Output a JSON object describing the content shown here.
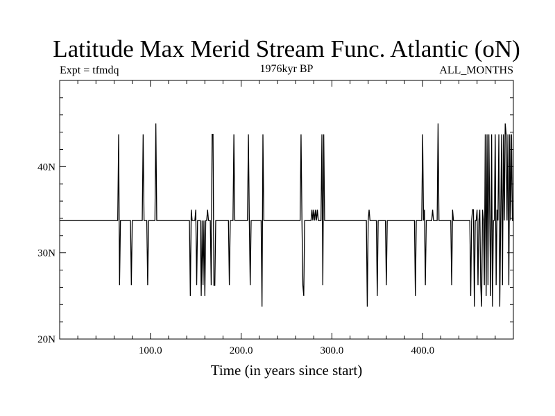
{
  "chart_data": {
    "type": "line",
    "title": "Latitude Max Merid Stream Func. Atlantic (oN)",
    "subtitle_left": "Expt = tfmdq",
    "subtitle_center": "1976kyr BP",
    "subtitle_right": "ALL_MONTHS",
    "xlabel": "Time (in years since start)",
    "ylabel": "",
    "xlim": [
      0,
      500
    ],
    "ylim": [
      20,
      50
    ],
    "x_ticks": [
      100,
      200,
      300,
      400
    ],
    "x_tick_labels": [
      "100.0",
      "200.0",
      "300.0",
      "400.0"
    ],
    "y_ticks": [
      20,
      30,
      40
    ],
    "y_tick_labels": [
      "20N",
      "30N",
      "40N"
    ],
    "grid": false,
    "legend": "none",
    "baseline": 33.75,
    "series": [
      {
        "values_x": [
          0,
          64,
          65,
          66,
          67,
          68,
          78,
          79,
          80,
          91,
          92,
          93,
          96,
          97,
          98,
          105,
          106,
          107,
          143,
          144,
          145,
          146,
          149,
          150,
          151,
          152,
          155,
          156,
          157,
          158,
          159,
          160,
          161,
          162,
          163,
          164,
          166,
          167,
          168,
          169,
          170,
          171,
          172,
          173,
          186,
          187,
          188,
          191,
          192,
          193,
          207,
          208,
          209,
          210,
          211,
          222,
          223,
          224,
          225,
          265,
          266,
          267,
          268,
          269,
          270,
          277,
          278,
          279,
          280,
          281,
          282,
          283,
          284,
          285,
          288,
          289,
          290,
          291,
          292,
          338,
          339,
          340,
          341,
          342,
          343,
          349,
          350,
          351,
          359,
          360,
          361,
          391,
          392,
          393,
          399,
          400,
          401,
          402,
          403,
          404,
          405,
          410,
          411,
          412,
          416,
          417,
          418,
          431,
          432,
          433,
          434,
          452,
          453,
          454,
          455,
          456,
          457,
          458,
          459,
          460,
          461,
          462,
          463,
          464,
          465,
          466,
          467,
          468,
          469,
          470,
          471,
          472,
          473,
          474,
          475,
          476,
          477,
          478,
          479,
          480,
          481,
          482,
          483,
          484,
          485,
          486,
          487,
          488,
          489,
          490,
          491,
          492,
          493,
          494,
          495,
          496,
          497,
          498,
          499,
          500
        ],
        "values_y": [
          33.75,
          33.75,
          43.75,
          26.25,
          33.75,
          33.75,
          33.75,
          26.25,
          33.75,
          33.75,
          43.75,
          33.75,
          33.75,
          26.25,
          33.75,
          33.75,
          45,
          33.75,
          33.75,
          25,
          35,
          33.75,
          33.75,
          35,
          26.25,
          33.75,
          33.75,
          25,
          33.75,
          26.25,
          33.75,
          25,
          33.75,
          33.75,
          35,
          33.75,
          33.75,
          26.25,
          43.75,
          43.75,
          26.25,
          26.25,
          33.75,
          33.75,
          33.75,
          26.25,
          33.75,
          33.75,
          43.75,
          33.75,
          33.75,
          43.75,
          33.75,
          26.25,
          33.75,
          33.75,
          23.75,
          43.75,
          33.75,
          33.75,
          43.75,
          33.75,
          26.25,
          25,
          33.75,
          33.75,
          35,
          33.75,
          35,
          33.75,
          35,
          33.75,
          35,
          33.75,
          33.75,
          43.75,
          26.25,
          43.75,
          33.75,
          33.75,
          23.75,
          33.75,
          35,
          33.75,
          33.75,
          33.75,
          25,
          33.75,
          33.75,
          26.25,
          33.75,
          33.75,
          25,
          33.75,
          33.75,
          43.75,
          33.75,
          35,
          26.25,
          33.75,
          33.75,
          33.75,
          35,
          33.75,
          33.75,
          45,
          33.75,
          33.75,
          26.25,
          35,
          33.75,
          33.75,
          25,
          33.75,
          35,
          35,
          23.75,
          33.75,
          33.75,
          35,
          26.25,
          33.75,
          35,
          26.25,
          23.75,
          35,
          33.75,
          26.25,
          43.75,
          25,
          43.75,
          26.25,
          43.75,
          33.75,
          25,
          43.75,
          23.75,
          33.75,
          33.75,
          43.75,
          26.25,
          35,
          33.75,
          43.75,
          23.75,
          33.75,
          43.75,
          26.25,
          43.75,
          33.75,
          45,
          43.75,
          33.75,
          43.75,
          26.25,
          43.75,
          33.75,
          43.75,
          33.75,
          33.75
        ]
      }
    ]
  }
}
